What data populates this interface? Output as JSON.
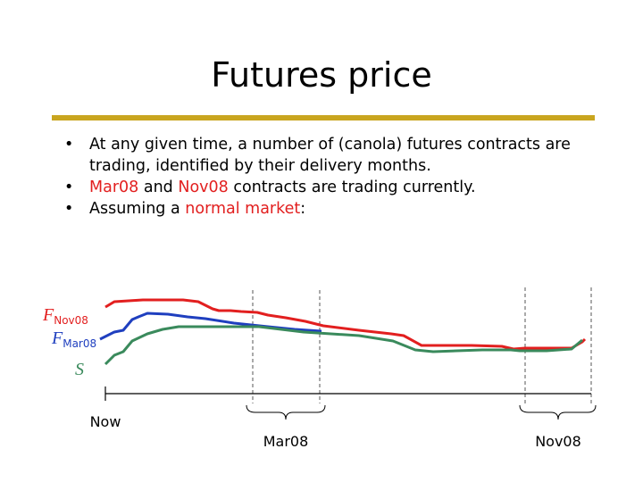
{
  "slide": {
    "title": "Futures price",
    "accent_color": "#c9a51f"
  },
  "bullets": [
    {
      "segments": [
        {
          "text": "At any given time, a number of (canola) futures contracts are trading, identified by their delivery months.",
          "color": "#000000"
        }
      ]
    },
    {
      "segments": [
        {
          "text": "Mar08",
          "color": "#e21f1f"
        },
        {
          "text": " and ",
          "color": "#000000"
        },
        {
          "text": "Nov08",
          "color": "#e21f1f"
        },
        {
          "text": " contracts are trading currently.",
          "color": "#000000"
        }
      ]
    },
    {
      "segments": [
        {
          "text": "Assuming a ",
          "color": "#000000"
        },
        {
          "text": "normal market",
          "color": "#e21f1f"
        },
        {
          "text": ":",
          "color": "#000000"
        }
      ]
    }
  ],
  "diagram": {
    "labels": {
      "f_nov_main": "F",
      "f_nov_sub": "Nov08",
      "f_mar_main": "F",
      "f_mar_sub": "Mar08",
      "spot": "S",
      "now": "Now",
      "mar08": "Mar08",
      "nov08": "Nov08"
    },
    "series_colors": {
      "nov08": "#e21f1f",
      "mar08": "#1f3fbf",
      "spot": "#3a8a5c"
    }
  }
}
